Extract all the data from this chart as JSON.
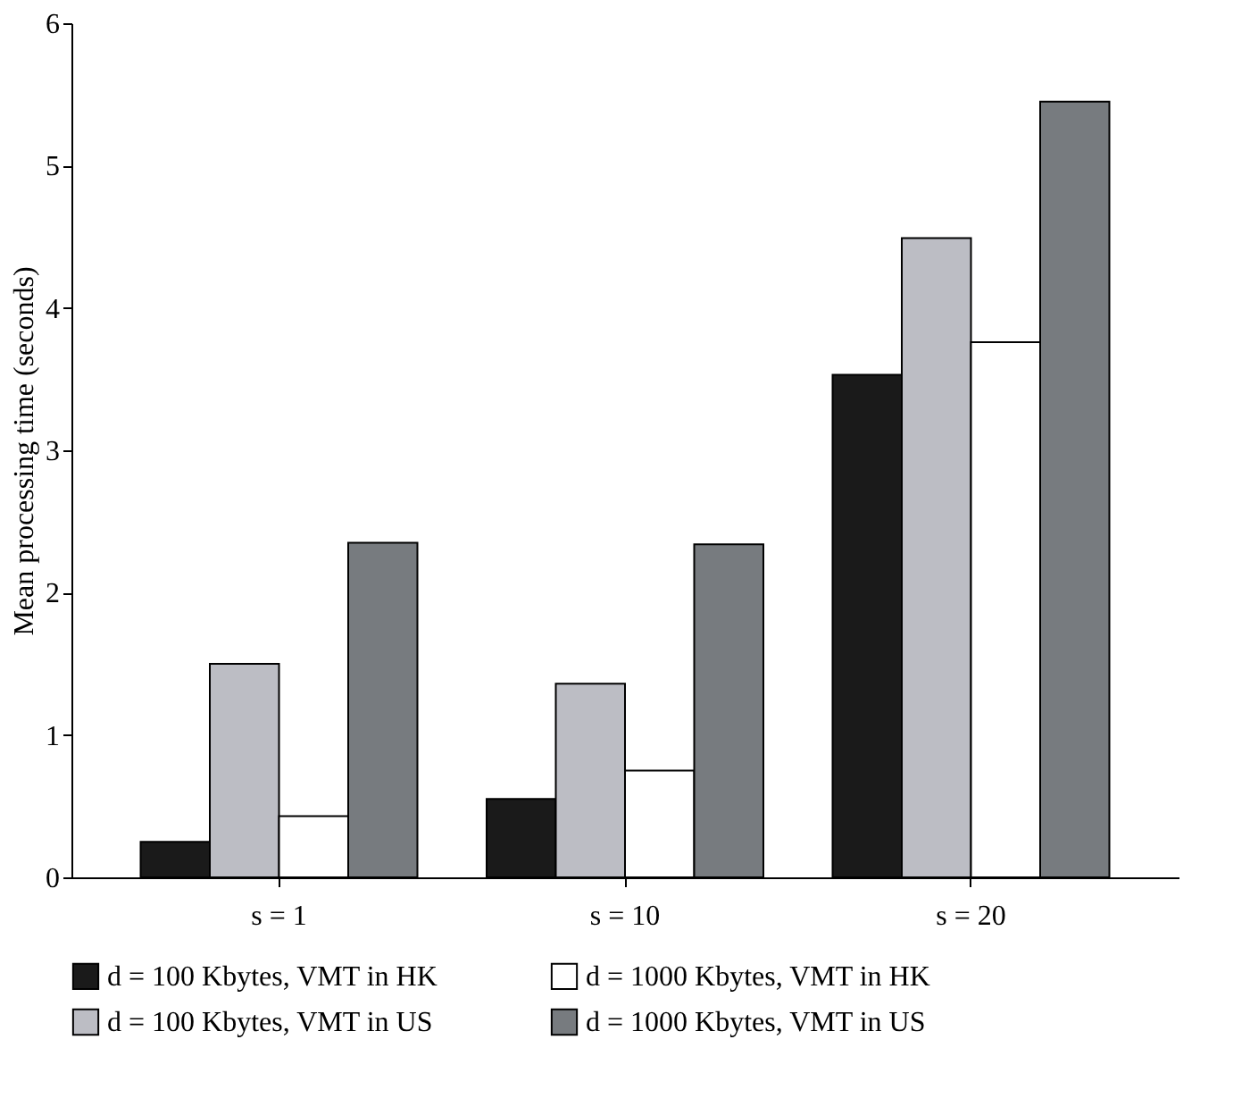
{
  "chart_data": {
    "type": "bar",
    "ylabel": "Mean processing time (seconds)",
    "categories": [
      "s = 1",
      "s = 10",
      "s = 20"
    ],
    "series": [
      {
        "name": "d = 100 Kbytes, VMT in HK",
        "color": "#1a1a1a",
        "values": [
          0.25,
          0.55,
          3.53
        ]
      },
      {
        "name": "d = 100 Kbytes, VMT in US",
        "color": "#bcbdc4",
        "values": [
          1.5,
          1.36,
          4.49
        ]
      },
      {
        "name": "d = 1000 Kbytes, VMT in HK",
        "color": "#ffffff",
        "values": [
          0.43,
          0.75,
          3.76
        ]
      },
      {
        "name": "d = 1000 Kbytes, VMT in US",
        "color": "#777b7f",
        "values": [
          2.35,
          2.34,
          5.45
        ]
      }
    ],
    "ylim": [
      0,
      6
    ],
    "yticks": [
      0,
      1,
      2,
      3,
      4,
      5,
      6
    ],
    "grid": false,
    "legend": "bottom"
  }
}
